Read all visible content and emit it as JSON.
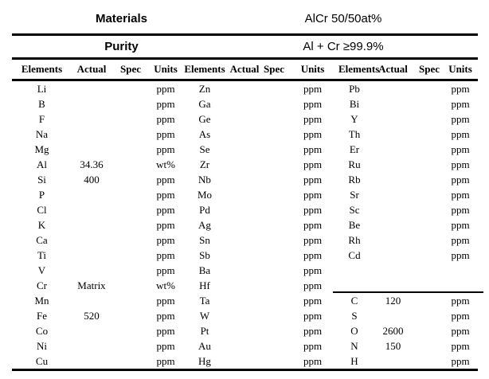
{
  "info": {
    "materials_label": "Materials",
    "materials_value": "AlCr 50/50at%",
    "purity_label": "Purity",
    "purity_value": "Al + Cr ≥99.9%"
  },
  "table": {
    "column_headers": [
      "Elements",
      "Actual",
      "Spec",
      "Units",
      "Elements",
      "Actual",
      "Spec",
      "Units",
      "Elements",
      "Actual",
      "Spec",
      "Units"
    ],
    "rows": [
      [
        "Li",
        "",
        "",
        "ppm",
        "Zn",
        "",
        "",
        "ppm",
        "Pb",
        "",
        "",
        "ppm"
      ],
      [
        "B",
        "",
        "",
        "ppm",
        "Ga",
        "",
        "",
        "ppm",
        "Bi",
        "",
        "",
        "ppm"
      ],
      [
        "F",
        "",
        "",
        "ppm",
        "Ge",
        "",
        "",
        "ppm",
        "Y",
        "",
        "",
        "ppm"
      ],
      [
        "Na",
        "",
        "",
        "ppm",
        "As",
        "",
        "",
        "ppm",
        "Th",
        "",
        "",
        "ppm"
      ],
      [
        "Mg",
        "",
        "",
        "ppm",
        "Se",
        "",
        "",
        "ppm",
        "Er",
        "",
        "",
        "ppm"
      ],
      [
        "Al",
        "34.36",
        "",
        "wt%",
        "Zr",
        "",
        "",
        "ppm",
        "Ru",
        "",
        "",
        "ppm"
      ],
      [
        "Si",
        "400",
        "",
        "ppm",
        "Nb",
        "",
        "",
        "ppm",
        "Rb",
        "",
        "",
        "ppm"
      ],
      [
        "P",
        "",
        "",
        "ppm",
        "Mo",
        "",
        "",
        "ppm",
        "Sr",
        "",
        "",
        "ppm"
      ],
      [
        "Cl",
        "",
        "",
        "ppm",
        "Pd",
        "",
        "",
        "ppm",
        "Sc",
        "",
        "",
        "ppm"
      ],
      [
        "K",
        "",
        "",
        "ppm",
        "Ag",
        "",
        "",
        "ppm",
        "Be",
        "",
        "",
        "ppm"
      ],
      [
        "Ca",
        "",
        "",
        "ppm",
        "Sn",
        "",
        "",
        "ppm",
        "Rh",
        "",
        "",
        "ppm"
      ],
      [
        "Ti",
        "",
        "",
        "ppm",
        "Sb",
        "",
        "",
        "ppm",
        "Cd",
        "",
        "",
        "ppm"
      ],
      [
        "V",
        "",
        "",
        "ppm",
        "Ba",
        "",
        "",
        "ppm",
        "",
        "",
        "",
        ""
      ],
      [
        "Cr",
        "Matrix",
        "",
        "wt%",
        "Hf",
        "",
        "",
        "ppm",
        "",
        "",
        "",
        ""
      ],
      [
        "Mn",
        "",
        "",
        "ppm",
        "Ta",
        "",
        "",
        "ppm",
        "C",
        "120",
        "",
        "ppm"
      ],
      [
        "Fe",
        "520",
        "",
        "ppm",
        "W",
        "",
        "",
        "ppm",
        "S",
        "",
        "",
        "ppm"
      ],
      [
        "Co",
        "",
        "",
        "ppm",
        "Pt",
        "",
        "",
        "ppm",
        "O",
        "2600",
        "",
        "ppm"
      ],
      [
        "Ni",
        "",
        "",
        "ppm",
        "Au",
        "",
        "",
        "ppm",
        "N",
        "150",
        "",
        "ppm"
      ],
      [
        "Cu",
        "",
        "",
        "ppm",
        "Hg",
        "",
        "",
        "ppm",
        "H",
        "",
        "",
        "ppm"
      ]
    ]
  }
}
